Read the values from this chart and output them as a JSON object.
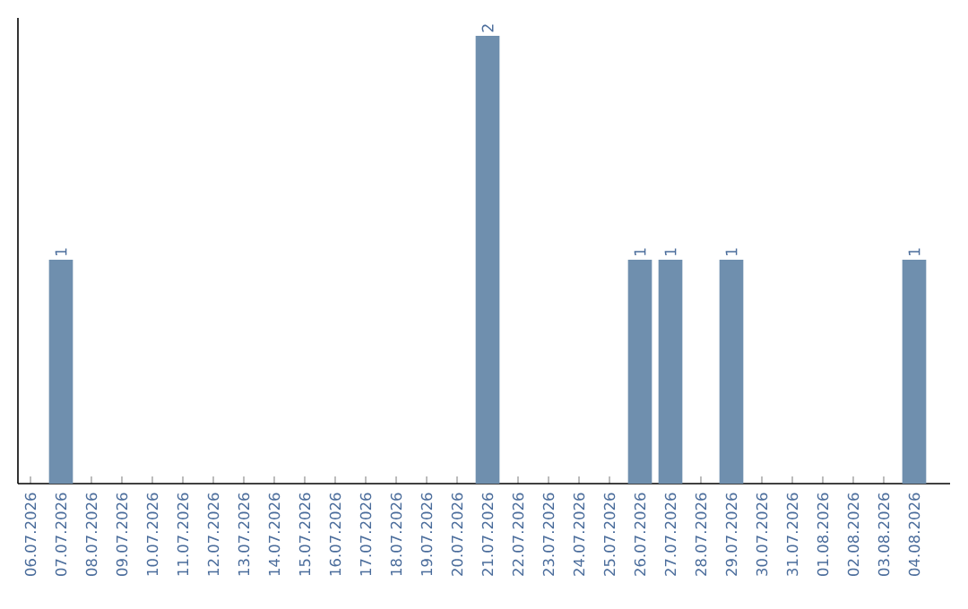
{
  "chart_data": {
    "type": "bar",
    "categories": [
      "06.07.2026",
      "07.07.2026",
      "08.07.2026",
      "09.07.2026",
      "10.07.2026",
      "11.07.2026",
      "12.07.2026",
      "13.07.2026",
      "14.07.2026",
      "15.07.2026",
      "16.07.2026",
      "17.07.2026",
      "18.07.2026",
      "19.07.2026",
      "20.07.2026",
      "21.07.2026",
      "22.07.2026",
      "23.07.2026",
      "24.07.2026",
      "25.07.2026",
      "26.07.2026",
      "27.07.2026",
      "28.07.2026",
      "29.07.2026",
      "30.07.2026",
      "31.07.2026",
      "01.08.2026",
      "02.08.2026",
      "03.08.2026",
      "04.08.2026"
    ],
    "values": [
      0,
      1,
      0,
      0,
      0,
      0,
      0,
      0,
      0,
      0,
      0,
      0,
      0,
      0,
      0,
      2,
      0,
      0,
      0,
      0,
      1,
      1,
      0,
      1,
      0,
      0,
      0,
      0,
      0,
      1
    ],
    "value_labels": [
      null,
      "1",
      null,
      null,
      null,
      null,
      null,
      null,
      null,
      null,
      null,
      null,
      null,
      null,
      null,
      "2",
      null,
      null,
      null,
      null,
      "1",
      "1",
      null,
      "1",
      null,
      null,
      null,
      null,
      null,
      "1"
    ],
    "color": "#6f8fae",
    "tick_labels": "x"
  }
}
